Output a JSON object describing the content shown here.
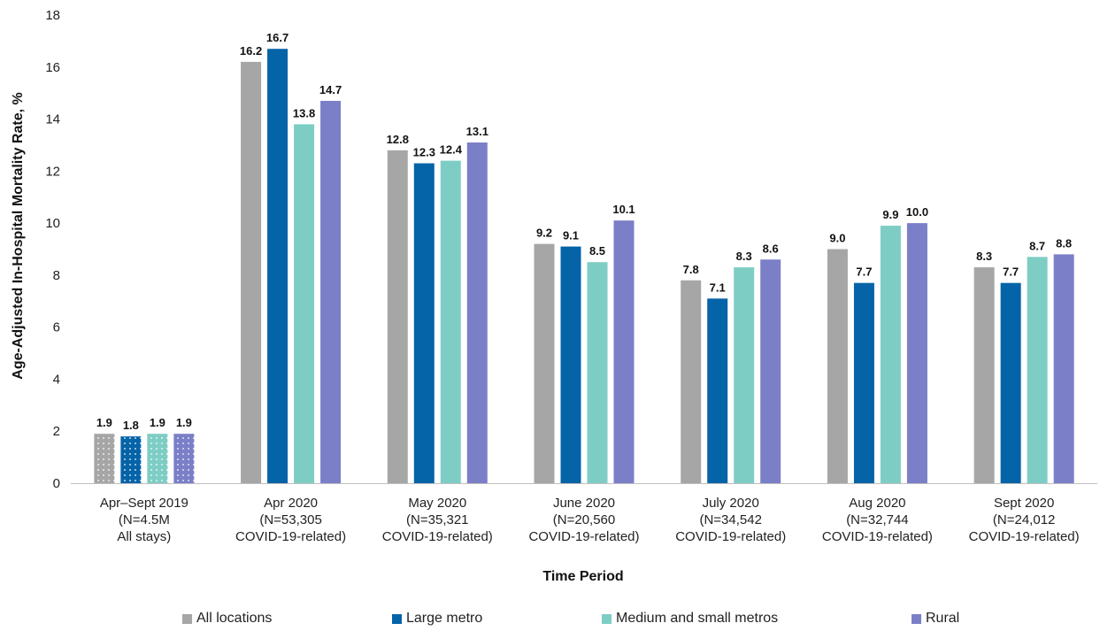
{
  "chart_data": {
    "type": "bar",
    "xlabel": "Time Period",
    "ylabel": "Age-Adjusted In-Hospital Mortality Rate, %",
    "ylim": [
      0,
      18
    ],
    "yticks": [
      0,
      2,
      4,
      6,
      8,
      10,
      12,
      14,
      16,
      18
    ],
    "grid": false,
    "legend_position": "bottom",
    "categories": [
      [
        "Apr–Sept 2019",
        "(N=4.5M",
        "All stays)"
      ],
      [
        "Apr 2020",
        "(N=53,305",
        "COVID-19-related)"
      ],
      [
        "May 2020",
        "(N=35,321",
        "COVID-19-related)"
      ],
      [
        "June 2020",
        "(N=20,560",
        "COVID-19-related)"
      ],
      [
        "July 2020",
        "(N=34,542",
        "COVID-19-related)"
      ],
      [
        "Aug 2020",
        "(N=32,744",
        "COVID-19-related)"
      ],
      [
        "Sept 2020",
        "(N=24,012",
        "COVID-19-related)"
      ]
    ],
    "dotted_categories": [
      0
    ],
    "series": [
      {
        "name": "All locations",
        "color": "#a6a6a6",
        "values": [
          1.9,
          16.2,
          12.8,
          9.2,
          7.8,
          9.0,
          8.3
        ]
      },
      {
        "name": "Large metro",
        "color": "#0563a8",
        "values": [
          1.8,
          16.7,
          12.3,
          9.1,
          7.1,
          7.7,
          7.7
        ]
      },
      {
        "name": "Medium and small metros",
        "color": "#7ecdc4",
        "values": [
          1.9,
          13.8,
          12.4,
          8.5,
          8.3,
          9.9,
          8.7
        ]
      },
      {
        "name": "Rural",
        "color": "#7b7fc8",
        "values": [
          1.9,
          14.7,
          13.1,
          10.1,
          8.6,
          10.0,
          8.8
        ]
      }
    ],
    "data_labels": [
      [
        "1.9",
        "16.2",
        "12.8",
        "9.2",
        "7.8",
        "9.0",
        "8.3"
      ],
      [
        "1.8",
        "16.7",
        "12.3",
        "9.1",
        "7.1",
        "7.7",
        "7.7"
      ],
      [
        "1.9",
        "13.8",
        "12.4",
        "8.5",
        "8.3",
        "9.9",
        "8.7"
      ],
      [
        "1.9",
        "14.7",
        "13.1",
        "10.1",
        "8.6",
        "10.0",
        "8.8"
      ]
    ]
  }
}
